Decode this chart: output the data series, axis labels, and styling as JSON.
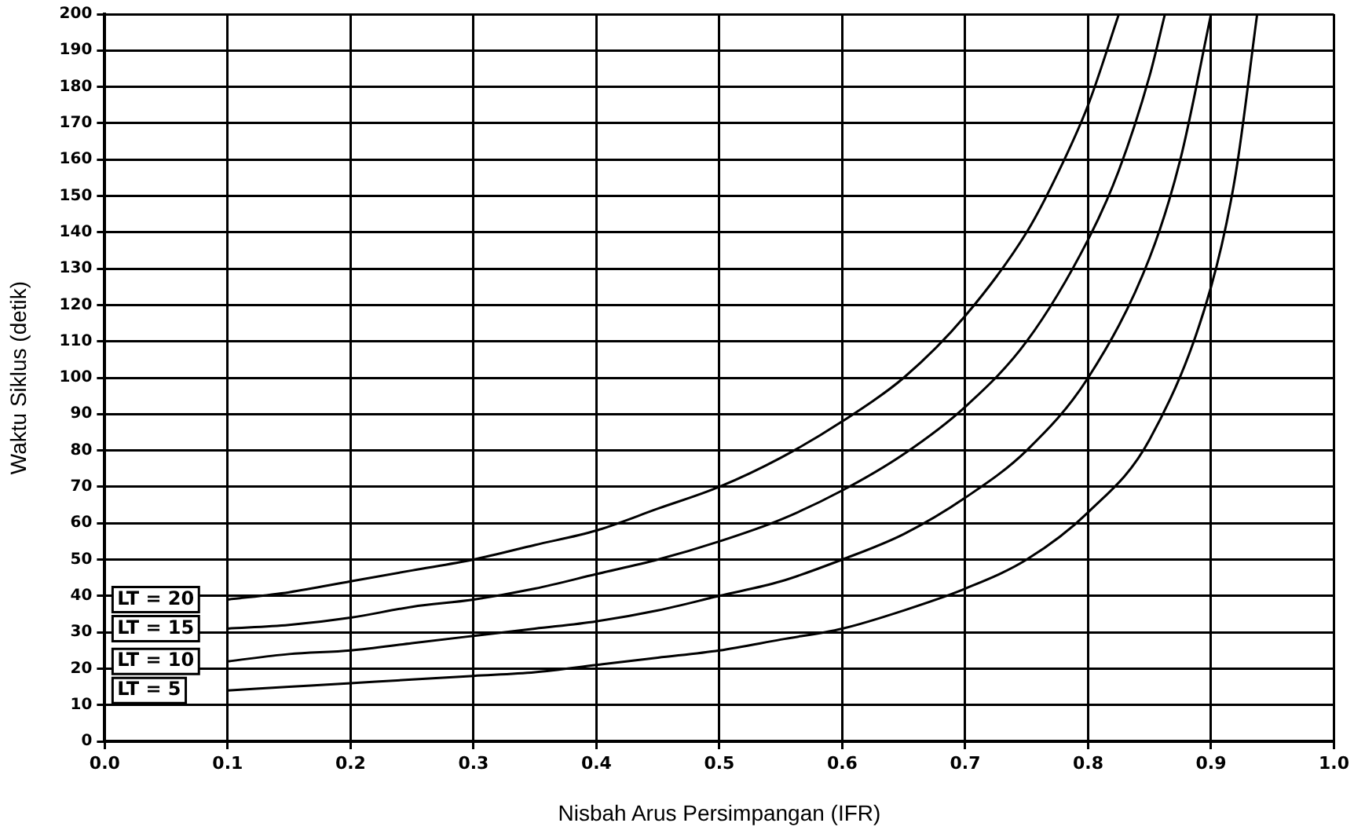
{
  "chart_data": {
    "type": "line",
    "xlabel": "Nisbah Arus Persimpangan (IFR)",
    "ylabel": "Waktu Siklus (detik)",
    "xlim": [
      0,
      1
    ],
    "ylim": [
      0,
      200
    ],
    "xticks": [
      {
        "value": 0,
        "label": "0.0"
      },
      {
        "value": 0.1,
        "label": "0.1"
      },
      {
        "value": 0.2,
        "label": "0.2"
      },
      {
        "value": 0.3,
        "label": "0.3"
      },
      {
        "value": 0.4,
        "label": "0.4"
      },
      {
        "value": 0.5,
        "label": "0.5"
      },
      {
        "value": 0.6,
        "label": "0.6"
      },
      {
        "value": 0.7,
        "label": "0.7"
      },
      {
        "value": 0.8,
        "label": "0.8"
      },
      {
        "value": 0.9,
        "label": "0.9"
      },
      {
        "value": 1,
        "label": "1.0"
      }
    ],
    "yticks": [
      0,
      10,
      20,
      30,
      40,
      50,
      60,
      70,
      80,
      90,
      100,
      110,
      120,
      130,
      140,
      150,
      160,
      170,
      180,
      190,
      200
    ],
    "grid": true,
    "legend": "bottom left",
    "marker": "none",
    "line_style": "solid",
    "series": [
      {
        "name": "LT = 20",
        "color": "#000000",
        "x": [
          0.1,
          0.15,
          0.2,
          0.25,
          0.3,
          0.35,
          0.4,
          0.45,
          0.5,
          0.55,
          0.6,
          0.65,
          0.7,
          0.75,
          0.775,
          0.8,
          0.825
        ],
        "values": [
          39,
          41,
          44,
          47,
          50,
          54,
          58,
          64,
          70,
          78,
          88,
          100,
          117,
          140,
          156,
          175,
          200
        ]
      },
      {
        "name": "LT = 15",
        "color": "#000000",
        "x": [
          0.1,
          0.15,
          0.2,
          0.25,
          0.3,
          0.35,
          0.4,
          0.45,
          0.5,
          0.55,
          0.6,
          0.65,
          0.7,
          0.75,
          0.8,
          0.825,
          0.85,
          0.8625
        ],
        "values": [
          31,
          32,
          34,
          37,
          39,
          42,
          46,
          50,
          55,
          61,
          69,
          79,
          92,
          110,
          138,
          157,
          183,
          200
        ]
      },
      {
        "name": "LT = 10",
        "color": "#000000",
        "x": [
          0.1,
          0.15,
          0.2,
          0.25,
          0.3,
          0.35,
          0.4,
          0.45,
          0.5,
          0.55,
          0.6,
          0.65,
          0.7,
          0.75,
          0.8,
          0.85,
          0.875,
          0.9
        ],
        "values": [
          22,
          24,
          25,
          27,
          29,
          31,
          33,
          36,
          40,
          44,
          50,
          57,
          67,
          80,
          100,
          133,
          160,
          200
        ]
      },
      {
        "name": "LT = 5",
        "color": "#000000",
        "x": [
          0.1,
          0.15,
          0.2,
          0.25,
          0.3,
          0.35,
          0.4,
          0.45,
          0.5,
          0.55,
          0.6,
          0.65,
          0.7,
          0.75,
          0.8,
          0.85,
          0.9,
          0.92,
          0.9375
        ],
        "values": [
          14,
          15,
          16,
          17,
          18,
          19,
          21,
          23,
          25,
          28,
          31,
          36,
          42,
          50,
          63,
          83,
          125,
          156,
          200
        ]
      }
    ]
  }
}
